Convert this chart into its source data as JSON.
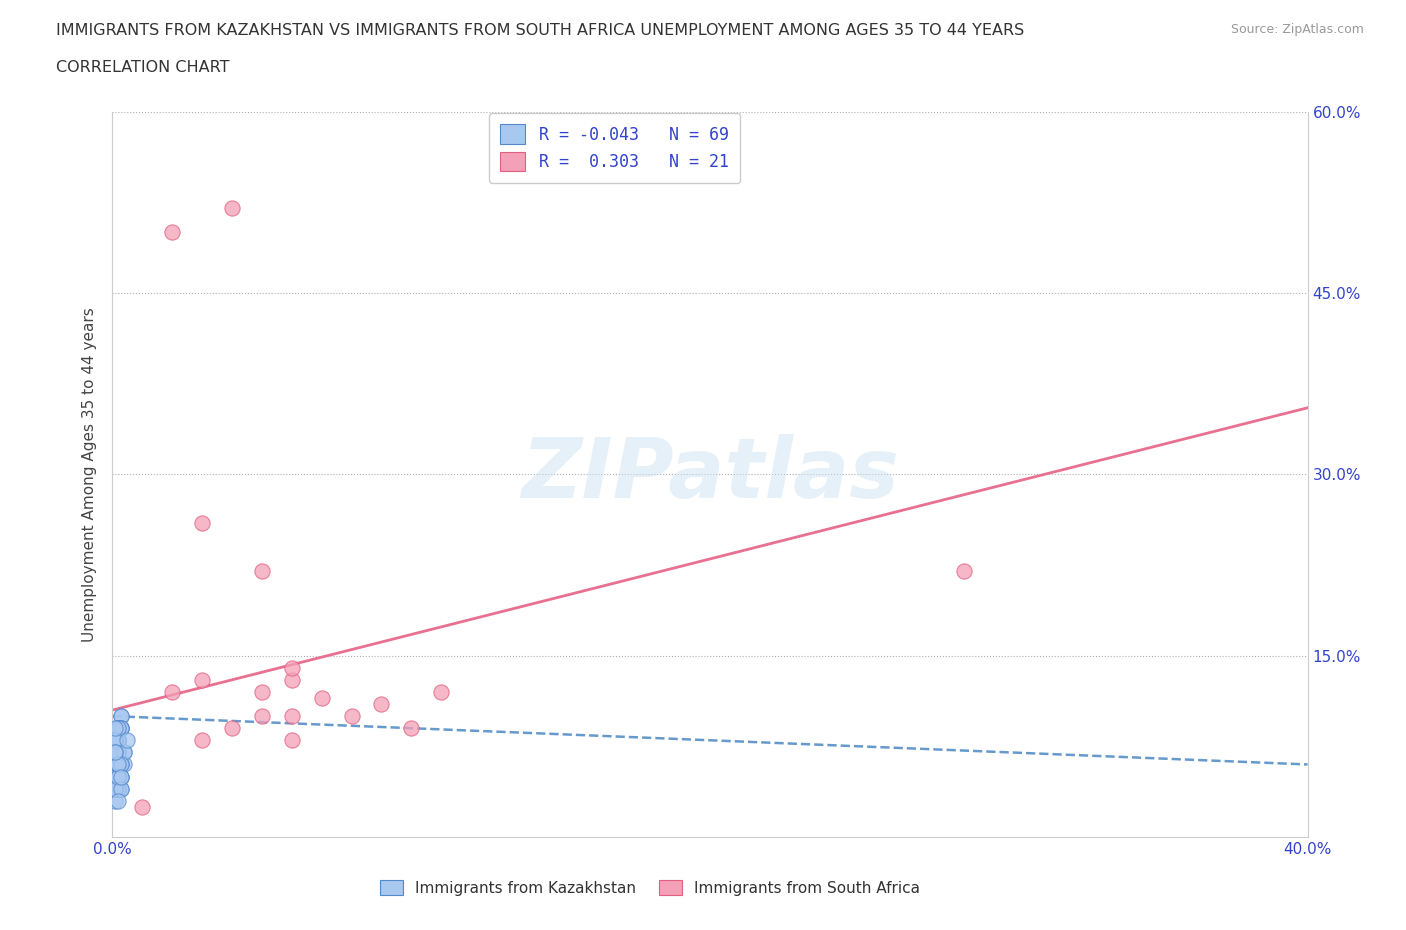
{
  "title_line1": "IMMIGRANTS FROM KAZAKHSTAN VS IMMIGRANTS FROM SOUTH AFRICA UNEMPLOYMENT AMONG AGES 35 TO 44 YEARS",
  "title_line2": "CORRELATION CHART",
  "source": "Source: ZipAtlas.com",
  "ylabel": "Unemployment Among Ages 35 to 44 years",
  "xlim": [
    0.0,
    0.4
  ],
  "ylim": [
    0.0,
    0.6
  ],
  "xticks": [
    0.0,
    0.1,
    0.2,
    0.3,
    0.4
  ],
  "yticks": [
    0.0,
    0.15,
    0.3,
    0.45,
    0.6
  ],
  "kaz_R": -0.043,
  "kaz_N": 69,
  "sa_R": 0.303,
  "sa_N": 21,
  "kaz_color": "#a8c8f0",
  "sa_color": "#f4a0b8",
  "kaz_edge_color": "#5588cc",
  "sa_edge_color": "#e06080",
  "kaz_line_color": "#6699cc",
  "sa_line_color": "#e87090",
  "legend_label_kaz": "Immigrants from Kazakhstan",
  "legend_label_sa": "Immigrants from South Africa",
  "watermark_text": "ZIPatlas",
  "background_color": "#ffffff",
  "title_color": "#333333",
  "tick_label_color": "#3344cc",
  "kaz_x": [
    0.002,
    0.001,
    0.003,
    0.001,
    0.002,
    0.001,
    0.003,
    0.002,
    0.001,
    0.002,
    0.001,
    0.003,
    0.002,
    0.001,
    0.002,
    0.001,
    0.003,
    0.002,
    0.001,
    0.002,
    0.001,
    0.003,
    0.002,
    0.001,
    0.004,
    0.002,
    0.001,
    0.003,
    0.002,
    0.001,
    0.002,
    0.001,
    0.003,
    0.002,
    0.001,
    0.004,
    0.002,
    0.001,
    0.003,
    0.002,
    0.001,
    0.002,
    0.003,
    0.001,
    0.002,
    0.001,
    0.003,
    0.002,
    0.001,
    0.002,
    0.001,
    0.003,
    0.002,
    0.001,
    0.002,
    0.004,
    0.001,
    0.002,
    0.003,
    0.001,
    0.002,
    0.001,
    0.003,
    0.001,
    0.002,
    0.005,
    0.003,
    0.001,
    0.002
  ],
  "kaz_y": [
    0.08,
    0.06,
    0.1,
    0.04,
    0.09,
    0.07,
    0.05,
    0.08,
    0.03,
    0.06,
    0.05,
    0.09,
    0.07,
    0.04,
    0.08,
    0.06,
    0.1,
    0.05,
    0.07,
    0.09,
    0.04,
    0.06,
    0.08,
    0.05,
    0.07,
    0.09,
    0.06,
    0.04,
    0.08,
    0.05,
    0.07,
    0.06,
    0.09,
    0.04,
    0.08,
    0.06,
    0.05,
    0.07,
    0.09,
    0.04,
    0.06,
    0.08,
    0.05,
    0.07,
    0.09,
    0.04,
    0.06,
    0.08,
    0.05,
    0.07,
    0.04,
    0.09,
    0.06,
    0.08,
    0.05,
    0.07,
    0.04,
    0.09,
    0.06,
    0.08,
    0.05,
    0.07,
    0.04,
    0.09,
    0.06,
    0.08,
    0.05,
    0.07,
    0.03
  ],
  "sa_x": [
    0.01,
    0.02,
    0.03,
    0.03,
    0.04,
    0.05,
    0.05,
    0.06,
    0.06,
    0.06,
    0.07,
    0.08,
    0.09,
    0.1,
    0.11,
    0.02,
    0.04,
    0.03,
    0.05,
    0.06,
    0.285
  ],
  "sa_y": [
    0.025,
    0.12,
    0.08,
    0.13,
    0.09,
    0.1,
    0.12,
    0.08,
    0.1,
    0.13,
    0.115,
    0.1,
    0.11,
    0.09,
    0.12,
    0.5,
    0.52,
    0.26,
    0.22,
    0.14,
    0.22
  ],
  "sa_trend_x0": 0.0,
  "sa_trend_y0": 0.105,
  "sa_trend_x1": 0.4,
  "sa_trend_y1": 0.355,
  "kaz_trend_x0": 0.0,
  "kaz_trend_y0": 0.1,
  "kaz_trend_x1": 0.4,
  "kaz_trend_y1": 0.06
}
